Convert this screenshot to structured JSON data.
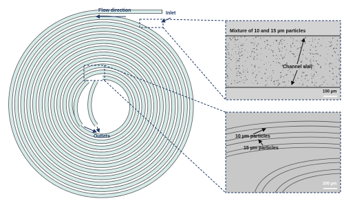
{
  "spiral": {
    "flow_direction": "Flow direction",
    "inlet": "Inlet",
    "outlets": "Outlets"
  },
  "top_panel": {
    "mixture": "Mixture of 10 and 15 µm particles",
    "channel_wall": "Channel wall",
    "scale": "100 µm"
  },
  "bottom_panel": {
    "small_particles": "10 µm particles",
    "large_particles": "15 µm particles",
    "scale": "200 µm"
  }
}
